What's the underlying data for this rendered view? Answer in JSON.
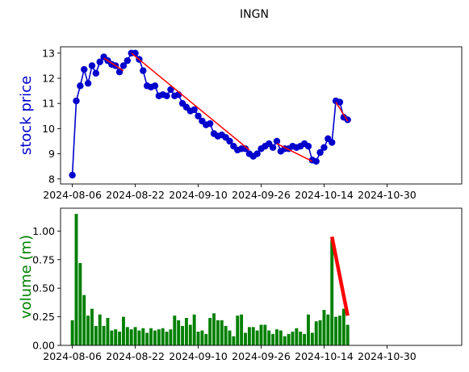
{
  "title": "INGN",
  "chart_data": [
    {
      "type": "line",
      "ylabel": "stock price",
      "ylabel_color": "#0000cc",
      "line_color": "#0000cc",
      "trend_color": "#ff0000",
      "x_ticks": [
        "2024-08-06",
        "2024-08-22",
        "2024-09-10",
        "2024-09-26",
        "2024-10-14",
        "2024-10-30"
      ],
      "x_tick_index": [
        0,
        16,
        32,
        48,
        64,
        80
      ],
      "y_ticks": [
        "8",
        "9",
        "10",
        "11",
        "12",
        "13"
      ],
      "ylim": [
        7.8,
        13.25
      ],
      "xlim": [
        -3,
        99
      ],
      "values": [
        8.15,
        11.1,
        11.7,
        12.35,
        11.8,
        12.5,
        12.2,
        12.65,
        12.85,
        12.7,
        12.55,
        12.5,
        12.25,
        12.5,
        12.7,
        13.0,
        13.0,
        12.75,
        12.3,
        11.7,
        11.65,
        11.7,
        11.3,
        11.35,
        11.3,
        11.55,
        11.3,
        11.35,
        11.0,
        10.85,
        10.7,
        10.75,
        10.5,
        10.3,
        10.15,
        10.2,
        9.8,
        9.7,
        9.75,
        9.65,
        9.5,
        9.3,
        9.15,
        9.2,
        9.2,
        9.0,
        8.9,
        9.0,
        9.2,
        9.3,
        9.4,
        9.25,
        9.5,
        9.1,
        9.2,
        9.2,
        9.3,
        9.25,
        9.3,
        9.4,
        9.3,
        8.75,
        8.7,
        9.05,
        9.25,
        9.6,
        9.45,
        11.1,
        11.05,
        10.45,
        10.35
      ],
      "trend_segments": [
        {
          "x": [
            8,
            13
          ],
          "y": [
            12.8,
            12.3
          ]
        },
        {
          "x": [
            15,
            45
          ],
          "y": [
            13.0,
            9.15
          ]
        },
        {
          "x": [
            52,
            61
          ],
          "y": [
            9.4,
            8.7
          ]
        },
        {
          "x": [
            67,
            70
          ],
          "y": [
            11.05,
            10.3
          ]
        }
      ]
    },
    {
      "type": "bar",
      "ylabel": "volume (m)",
      "ylabel_color": "#008000",
      "bar_color": "#008000",
      "trend_color": "#ff0000",
      "x_ticks": [
        "2024-08-06",
        "2024-08-22",
        "2024-09-10",
        "2024-09-26",
        "2024-10-14",
        "2024-10-30"
      ],
      "x_tick_index": [
        0,
        16,
        32,
        48,
        64,
        80
      ],
      "y_ticks": [
        "0.00",
        "0.25",
        "0.50",
        "0.75",
        "1.00"
      ],
      "ylim": [
        0,
        1.2
      ],
      "xlim": [
        -3,
        99
      ],
      "values": [
        0.22,
        1.15,
        0.72,
        0.44,
        0.26,
        0.32,
        0.17,
        0.27,
        0.17,
        0.24,
        0.13,
        0.14,
        0.12,
        0.25,
        0.16,
        0.14,
        0.16,
        0.13,
        0.15,
        0.11,
        0.15,
        0.13,
        0.14,
        0.15,
        0.12,
        0.14,
        0.26,
        0.22,
        0.17,
        0.24,
        0.18,
        0.27,
        0.12,
        0.13,
        0.1,
        0.24,
        0.28,
        0.22,
        0.22,
        0.17,
        0.13,
        0.08,
        0.26,
        0.27,
        0.11,
        0.16,
        0.16,
        0.13,
        0.18,
        0.18,
        0.13,
        0.1,
        0.14,
        0.13,
        0.08,
        0.1,
        0.12,
        0.15,
        0.12,
        0.1,
        0.27,
        0.11,
        0.21,
        0.22,
        0.31,
        0.27,
        0.92,
        0.25,
        0.26,
        0.32,
        0.18
      ],
      "trend_segments": [
        {
          "x": [
            66,
            70
          ],
          "y": [
            0.95,
            0.26
          ]
        }
      ]
    }
  ]
}
